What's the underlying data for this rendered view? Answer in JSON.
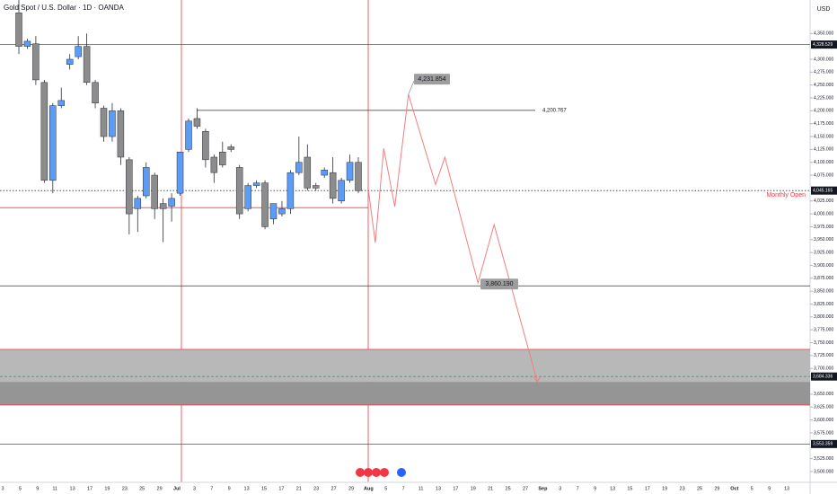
{
  "chart_data": {
    "type": "candlestick",
    "title": "Gold Spot / U.S. Dollar · 1D · OANDA",
    "currency": "USD",
    "ylim": [
      3479,
      4415
    ],
    "yticks": [
      {
        "value": 4350,
        "label": "4,350.000"
      },
      {
        "value": 4300,
        "label": "4,300.000"
      },
      {
        "value": 4275,
        "label": "4,275.000"
      },
      {
        "value": 4250,
        "label": "4,250.000"
      },
      {
        "value": 4225,
        "label": "4,225.000"
      },
      {
        "value": 4200,
        "label": "4,200.000"
      },
      {
        "value": 4175,
        "label": "4,175.000"
      },
      {
        "value": 4150,
        "label": "4,150.000"
      },
      {
        "value": 4125,
        "label": "4,125.000"
      },
      {
        "value": 4100,
        "label": "4,100.000"
      },
      {
        "value": 4075,
        "label": "4,075.000"
      },
      {
        "value": 4025,
        "label": "4,025.000"
      },
      {
        "value": 4000,
        "label": "4,000.000"
      },
      {
        "value": 3975,
        "label": "3,975.000"
      },
      {
        "value": 3950,
        "label": "3,950.000"
      },
      {
        "value": 3925,
        "label": "3,925.000"
      },
      {
        "value": 3900,
        "label": "3,900.000"
      },
      {
        "value": 3875,
        "label": "3,875.000"
      },
      {
        "value": 3850,
        "label": "3,850.000"
      },
      {
        "value": 3825,
        "label": "3,825.000"
      },
      {
        "value": 3800,
        "label": "3,800.000"
      },
      {
        "value": 3775,
        "label": "3,775.000"
      },
      {
        "value": 3750,
        "label": "3,750.000"
      },
      {
        "value": 3725,
        "label": "3,725.000"
      },
      {
        "value": 3700,
        "label": "3,700.000"
      },
      {
        "value": 3650,
        "label": "3,650.000"
      },
      {
        "value": 3625,
        "label": "3,625.000"
      },
      {
        "value": 3600,
        "label": "3,600.000"
      },
      {
        "value": 3575,
        "label": "3,575.000"
      },
      {
        "value": 3525,
        "label": "3,525.000"
      },
      {
        "value": 3500,
        "label": "3,500.000"
      }
    ],
    "x_labels": [
      "3",
      "5",
      "9",
      "11",
      "13",
      "17",
      "19",
      "23",
      "25",
      "29",
      "Jul",
      "3",
      "7",
      "9",
      "13",
      "15",
      "17",
      "21",
      "23",
      "27",
      "29",
      "Aug",
      "5",
      "7",
      "11",
      "13",
      "17",
      "19",
      "21",
      "25",
      "27",
      "Sep",
      "3",
      "7",
      "9",
      "13",
      "15",
      "17",
      "19",
      "23",
      "25",
      "29",
      "Oct",
      "5",
      "9",
      "13"
    ],
    "candles": {
      "up_color": "#5b9cf6",
      "down_color": "#8c8c8c",
      "open": [
        4390,
        4325,
        4330,
        4255,
        4065,
        4210,
        4290,
        4305,
        4325,
        4255,
        4205,
        4150,
        4200,
        4105,
        4010,
        4035,
        4075,
        4020,
        4015,
        4040,
        4125,
        4185,
        4160,
        4110,
        4120,
        4130,
        4090,
        4010,
        4055,
        4060,
        3990,
        4000,
        4010,
        4080,
        4110,
        4055,
        4075,
        4080,
        4025,
        4065,
        4100
      ],
      "high": [
        4415,
        4340,
        4345,
        4260,
        4215,
        4245,
        4310,
        4345,
        4350,
        4260,
        4210,
        4215,
        4205,
        4110,
        4035,
        4100,
        4080,
        4030,
        4040,
        4120,
        4185,
        4205,
        4165,
        4115,
        4140,
        4135,
        4095,
        4060,
        4065,
        4065,
        3995,
        4025,
        4085,
        4150,
        4135,
        4060,
        4090,
        4110,
        4070,
        4115,
        4110
      ],
      "low": [
        4310,
        4320,
        4250,
        4060,
        4040,
        4205,
        4280,
        4300,
        4250,
        4205,
        4140,
        4140,
        4095,
        3960,
        3965,
        4030,
        3990,
        3945,
        3985,
        4035,
        4120,
        4165,
        4090,
        4060,
        4090,
        4120,
        3990,
        4005,
        4050,
        3970,
        3980,
        3995,
        4000,
        4075,
        4045,
        4045,
        4070,
        4020,
        4020,
        4060,
        4040
      ],
      "close": [
        4325,
        4335,
        4260,
        4065,
        4210,
        4220,
        4300,
        4325,
        4255,
        4215,
        4150,
        4200,
        4110,
        4000,
        4030,
        4090,
        4010,
        4010,
        4030,
        4120,
        4180,
        4170,
        4105,
        4080,
        4095,
        4125,
        4000,
        4055,
        4060,
        3975,
        4020,
        4010,
        4080,
        4100,
        4050,
        4050,
        4085,
        4030,
        4065,
        4100,
        4045
      ]
    },
    "levels": [
      {
        "value": 4328.529,
        "label": "4,328.529",
        "style": "solid"
      },
      {
        "value": 4045.165,
        "label": "4,045.165",
        "style": "dotted"
      },
      {
        "value": 3684.336,
        "label": "3,684.336",
        "style": "teal"
      },
      {
        "value": 3553.359,
        "label": "3,553.359",
        "style": "solid"
      }
    ],
    "support": {
      "value": 3860.19,
      "label": "3,860.190"
    },
    "ray": {
      "value": 4200.767,
      "label": "4,200.767"
    },
    "monthly_open": {
      "value": 4012,
      "label": "Monthly Open"
    },
    "zone": {
      "top": 3737,
      "mid": 3674,
      "bottom": 3629
    },
    "projection": {
      "color": "#f07f7f",
      "x": [
        41.2,
        42,
        43,
        44.3,
        45.9,
        49.1,
        50.2,
        54.1,
        56,
        61.1
      ],
      "values": [
        4045,
        3944,
        4127,
        4014,
        4232,
        4057,
        4110,
        3866,
        3979,
        3674
      ]
    },
    "peak_callout": {
      "value": 4231.854,
      "label": "4,231.854"
    }
  }
}
